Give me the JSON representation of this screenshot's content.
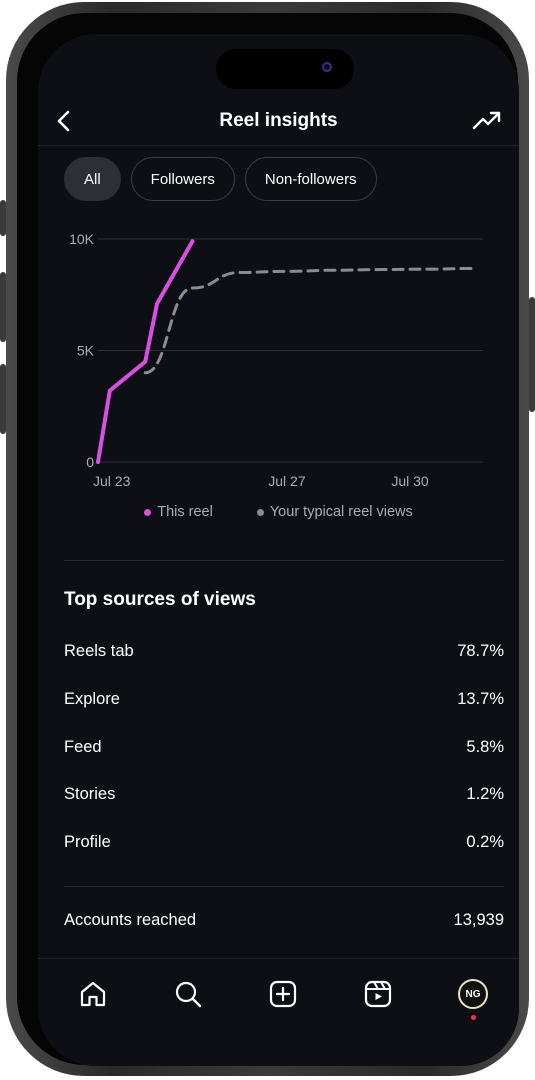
{
  "header": {
    "title": "Reel insights",
    "back_icon": "chevron-left-icon",
    "trend_icon": "trending-up-icon"
  },
  "filters": [
    {
      "label": "All",
      "active": true
    },
    {
      "label": "Followers",
      "active": false
    },
    {
      "label": "Non-followers",
      "active": false
    }
  ],
  "chart_data": {
    "type": "line",
    "y_ticks": [
      "10K",
      "5K",
      "0"
    ],
    "x_ticks": [
      "Jul 23",
      "Jul 27",
      "Jul 30"
    ],
    "ylim": [
      0,
      10000
    ],
    "xlim": [
      "Jul 23",
      "Jul 31"
    ],
    "grid": true,
    "legend_position": "bottom",
    "series": [
      {
        "name": "This reel",
        "color": "#d94fe0",
        "style": "solid",
        "x": [
          "Jul 23",
          "Jul 23 (6h)",
          "Jul 24",
          "Jul 24 (6h)",
          "Jul 25"
        ],
        "values": [
          0,
          3200,
          4500,
          7100,
          9900
        ]
      },
      {
        "name": "Your typical reel views",
        "color": "#8a8c91",
        "style": "dashed",
        "x": [
          "Jul 24",
          "Jul 25",
          "Jul 26",
          "Jul 27",
          "Jul 28",
          "Jul 29",
          "Jul 30",
          "Jul 31"
        ],
        "values": [
          4000,
          7800,
          8500,
          8550,
          8600,
          8630,
          8650,
          8680
        ]
      }
    ]
  },
  "legend": [
    {
      "label": "This reel",
      "color": "#d94fe0"
    },
    {
      "label": "Your typical reel views",
      "color": "#8a8c91"
    }
  ],
  "sources": {
    "title": "Top sources of views",
    "rows": [
      {
        "label": "Reels tab",
        "value": "78.7%"
      },
      {
        "label": "Explore",
        "value": "13.7%"
      },
      {
        "label": "Feed",
        "value": "5.8%"
      },
      {
        "label": "Stories",
        "value": "1.2%"
      },
      {
        "label": "Profile",
        "value": "0.2%"
      }
    ]
  },
  "accounts_reached": {
    "label": "Accounts reached",
    "value": "13,939"
  },
  "tabbar": {
    "items": [
      "home-icon",
      "search-icon",
      "create-icon",
      "reels-icon",
      "profile-avatar"
    ],
    "avatar_text": "NG"
  }
}
